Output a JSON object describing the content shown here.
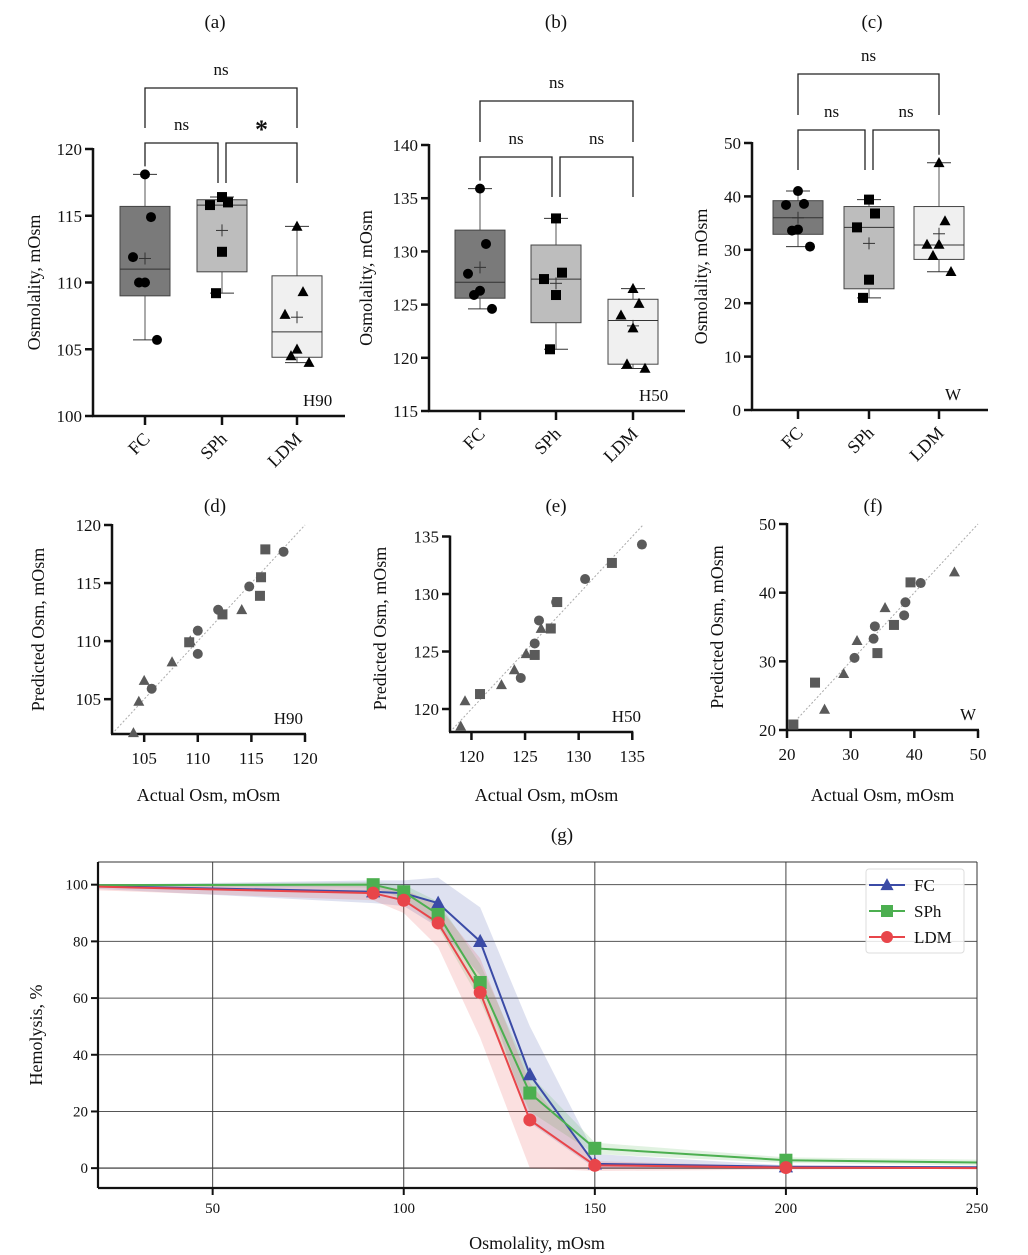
{
  "chart_data": [
    {
      "id": "a",
      "panel_label": "(a)",
      "type": "box",
      "ylabel": "Osmolality, mOsm",
      "ylim": [
        100,
        120
      ],
      "yticks": [
        100,
        105,
        110,
        115,
        120
      ],
      "categories": [
        "FC",
        "SPh",
        "LDM"
      ],
      "annotation": "H90",
      "boxes": [
        {
          "name": "FC",
          "q1": 109.0,
          "median": 111.0,
          "q3": 115.7,
          "min": 105.7,
          "max": 118.1,
          "mean": 111.8,
          "fill": "#7a7a7a",
          "marker": "circle",
          "points": [
            118.1,
            114.9,
            111.9,
            110.0,
            110.0,
            105.7
          ]
        },
        {
          "name": "SPh",
          "q1": 110.8,
          "median": 115.8,
          "q3": 116.2,
          "min": 109.2,
          "max": 116.4,
          "mean": 113.9,
          "fill": "#bdbdbd",
          "marker": "square",
          "points": [
            116.4,
            116.0,
            115.8,
            112.3,
            109.2
          ]
        },
        {
          "name": "LDM",
          "q1": 104.4,
          "median": 106.3,
          "q3": 110.5,
          "min": 104.0,
          "max": 114.2,
          "mean": 107.4,
          "fill": "#f0f0f0",
          "marker": "triangle",
          "points": [
            114.2,
            109.3,
            107.6,
            105.0,
            104.5,
            104.0
          ]
        }
      ],
      "significance": [
        {
          "from": "FC",
          "to": "SPh",
          "label": "ns",
          "level": 1
        },
        {
          "from": "SPh",
          "to": "LDM",
          "label": "*",
          "level": 1
        },
        {
          "from": "FC",
          "to": "LDM",
          "label": "ns",
          "level": 2
        }
      ]
    },
    {
      "id": "b",
      "panel_label": "(b)",
      "type": "box",
      "ylabel": "Osmolality, mOsm",
      "ylim": [
        115,
        140
      ],
      "yticks": [
        115,
        120,
        125,
        130,
        135,
        140
      ],
      "categories": [
        "FC",
        "SPh",
        "LDM"
      ],
      "annotation": "H50",
      "boxes": [
        {
          "name": "FC",
          "q1": 125.6,
          "median": 127.1,
          "q3": 132.0,
          "min": 124.6,
          "max": 135.9,
          "mean": 128.5,
          "fill": "#7a7a7a",
          "marker": "circle",
          "points": [
            135.9,
            130.7,
            127.9,
            126.3,
            125.9,
            124.6
          ]
        },
        {
          "name": "SPh",
          "q1": 123.3,
          "median": 127.4,
          "q3": 130.6,
          "min": 120.8,
          "max": 133.1,
          "mean": 127.0,
          "fill": "#bdbdbd",
          "marker": "square",
          "points": [
            133.1,
            128.0,
            127.4,
            125.9,
            120.8
          ]
        },
        {
          "name": "LDM",
          "q1": 119.4,
          "median": 123.5,
          "q3": 125.5,
          "min": 119.0,
          "max": 126.5,
          "mean": 123.0,
          "fill": "#f0f0f0",
          "marker": "triangle",
          "points": [
            126.5,
            125.1,
            124.0,
            122.8,
            119.4,
            119.0
          ]
        }
      ],
      "significance": [
        {
          "from": "FC",
          "to": "SPh",
          "label": "ns",
          "level": 1
        },
        {
          "from": "SPh",
          "to": "LDM",
          "label": "ns",
          "level": 1
        },
        {
          "from": "FC",
          "to": "LDM",
          "label": "ns",
          "level": 2
        }
      ]
    },
    {
      "id": "c",
      "panel_label": "(c)",
      "type": "box",
      "ylabel": "Osmolality, mOsm",
      "ylim": [
        0,
        50
      ],
      "yticks": [
        0,
        10,
        20,
        30,
        40,
        50
      ],
      "categories": [
        "FC",
        "SPh",
        "LDM"
      ],
      "annotation": "W",
      "boxes": [
        {
          "name": "FC",
          "q1": 32.9,
          "median": 36.0,
          "q3": 39.2,
          "min": 30.6,
          "max": 41.0,
          "mean": 36.0,
          "fill": "#7a7a7a",
          "marker": "circle",
          "points": [
            41.0,
            38.6,
            38.4,
            33.8,
            33.6,
            30.6
          ]
        },
        {
          "name": "SPh",
          "q1": 22.7,
          "median": 34.2,
          "q3": 38.1,
          "min": 21.0,
          "max": 39.4,
          "mean": 31.2,
          "fill": "#bdbdbd",
          "marker": "square",
          "points": [
            39.4,
            36.8,
            34.2,
            24.4,
            21.0
          ]
        },
        {
          "name": "LDM",
          "q1": 28.2,
          "median": 30.9,
          "q3": 38.1,
          "min": 25.9,
          "max": 46.3,
          "mean": 33.0,
          "fill": "#f0f0f0",
          "marker": "triangle",
          "points": [
            46.3,
            35.4,
            31.0,
            31.0,
            28.9,
            25.9
          ]
        }
      ],
      "significance": [
        {
          "from": "FC",
          "to": "SPh",
          "label": "ns",
          "level": 1
        },
        {
          "from": "SPh",
          "to": "LDM",
          "label": "ns",
          "level": 1
        },
        {
          "from": "FC",
          "to": "LDM",
          "label": "ns",
          "level": 2
        }
      ]
    },
    {
      "id": "d",
      "panel_label": "(d)",
      "type": "scatter",
      "xlabel": "Actual Osm, mOsm",
      "ylabel": "Predicted Osm, mOsm",
      "xlim": [
        102,
        120
      ],
      "ylim": [
        102,
        120
      ],
      "xticks": [
        105,
        110,
        115,
        120
      ],
      "yticks": [
        105,
        110,
        115,
        120
      ],
      "annotation": "H90",
      "identity_line": true,
      "points": [
        {
          "x": 118.0,
          "y": 117.7,
          "marker": "circle"
        },
        {
          "x": 116.3,
          "y": 117.9,
          "marker": "square"
        },
        {
          "x": 115.9,
          "y": 115.5,
          "marker": "square"
        },
        {
          "x": 114.8,
          "y": 114.7,
          "marker": "circle"
        },
        {
          "x": 115.8,
          "y": 113.9,
          "marker": "square"
        },
        {
          "x": 114.1,
          "y": 112.7,
          "marker": "triangle"
        },
        {
          "x": 111.9,
          "y": 112.7,
          "marker": "circle"
        },
        {
          "x": 112.3,
          "y": 112.3,
          "marker": "square"
        },
        {
          "x": 110.0,
          "y": 110.9,
          "marker": "circle"
        },
        {
          "x": 109.2,
          "y": 109.9,
          "marker": "square"
        },
        {
          "x": 109.3,
          "y": 110.0,
          "marker": "triangle"
        },
        {
          "x": 110.0,
          "y": 108.9,
          "marker": "circle"
        },
        {
          "x": 107.6,
          "y": 108.2,
          "marker": "triangle"
        },
        {
          "x": 105.7,
          "y": 105.9,
          "marker": "circle"
        },
        {
          "x": 105.0,
          "y": 106.6,
          "marker": "triangle"
        },
        {
          "x": 104.5,
          "y": 104.8,
          "marker": "triangle"
        },
        {
          "x": 104.0,
          "y": 102.1,
          "marker": "triangle"
        }
      ]
    },
    {
      "id": "e",
      "panel_label": "(e)",
      "type": "scatter",
      "xlabel": "Actual Osm, mOsm",
      "ylabel": "Predicted Osm, mOsm",
      "xlim": [
        118,
        136
      ],
      "ylim": [
        118,
        136
      ],
      "xticks": [
        120,
        125,
        130,
        135
      ],
      "yticks": [
        120,
        125,
        130,
        135
      ],
      "annotation": "H50",
      "identity_line": true,
      "points": [
        {
          "x": 135.9,
          "y": 134.3,
          "marker": "circle"
        },
        {
          "x": 133.1,
          "y": 132.7,
          "marker": "square"
        },
        {
          "x": 130.6,
          "y": 131.3,
          "marker": "circle"
        },
        {
          "x": 127.9,
          "y": 129.3,
          "marker": "circle"
        },
        {
          "x": 128.0,
          "y": 129.3,
          "marker": "square"
        },
        {
          "x": 127.4,
          "y": 127.0,
          "marker": "square"
        },
        {
          "x": 126.3,
          "y": 127.7,
          "marker": "circle"
        },
        {
          "x": 126.5,
          "y": 127.0,
          "marker": "triangle"
        },
        {
          "x": 125.9,
          "y": 125.7,
          "marker": "circle"
        },
        {
          "x": 125.9,
          "y": 124.7,
          "marker": "square"
        },
        {
          "x": 125.1,
          "y": 124.8,
          "marker": "triangle"
        },
        {
          "x": 124.0,
          "y": 123.4,
          "marker": "triangle"
        },
        {
          "x": 124.6,
          "y": 122.7,
          "marker": "circle"
        },
        {
          "x": 122.8,
          "y": 122.1,
          "marker": "triangle"
        },
        {
          "x": 120.8,
          "y": 121.3,
          "marker": "square"
        },
        {
          "x": 119.4,
          "y": 120.7,
          "marker": "triangle"
        },
        {
          "x": 119.0,
          "y": 118.5,
          "marker": "triangle"
        }
      ]
    },
    {
      "id": "f",
      "panel_label": "(f)",
      "type": "scatter",
      "xlabel": "Actual Osm, mOsm",
      "ylabel": "Predicted Osm, mOsm",
      "xlim": [
        20,
        50
      ],
      "ylim": [
        20,
        50
      ],
      "xticks": [
        20,
        30,
        40,
        50
      ],
      "yticks": [
        20,
        30,
        40,
        50
      ],
      "annotation": "W",
      "identity_line": true,
      "points": [
        {
          "x": 46.3,
          "y": 43.0,
          "marker": "triangle"
        },
        {
          "x": 39.4,
          "y": 41.5,
          "marker": "square"
        },
        {
          "x": 41.0,
          "y": 41.4,
          "marker": "circle"
        },
        {
          "x": 38.6,
          "y": 38.6,
          "marker": "circle"
        },
        {
          "x": 35.4,
          "y": 37.8,
          "marker": "triangle"
        },
        {
          "x": 38.4,
          "y": 36.7,
          "marker": "circle"
        },
        {
          "x": 36.8,
          "y": 35.3,
          "marker": "square"
        },
        {
          "x": 33.8,
          "y": 35.1,
          "marker": "circle"
        },
        {
          "x": 33.6,
          "y": 33.3,
          "marker": "circle"
        },
        {
          "x": 31.0,
          "y": 33.0,
          "marker": "triangle"
        },
        {
          "x": 34.2,
          "y": 31.2,
          "marker": "square"
        },
        {
          "x": 30.6,
          "y": 30.5,
          "marker": "circle"
        },
        {
          "x": 28.9,
          "y": 28.2,
          "marker": "triangle"
        },
        {
          "x": 24.4,
          "y": 26.9,
          "marker": "square"
        },
        {
          "x": 25.9,
          "y": 23.0,
          "marker": "triangle"
        },
        {
          "x": 21.0,
          "y": 20.8,
          "marker": "square"
        }
      ]
    },
    {
      "id": "g",
      "panel_label": "(g)",
      "type": "line",
      "xlabel": "Osmolality, mOsm",
      "ylabel": "Hemolysis, %",
      "xlim": [
        20,
        250
      ],
      "ylim": [
        -7,
        108
      ],
      "xticks": [
        50,
        100,
        150,
        200,
        250
      ],
      "yticks": [
        0,
        20,
        40,
        60,
        80,
        100
      ],
      "grid": true,
      "legend": "top-right",
      "x": [
        20,
        92,
        100,
        109,
        120,
        133,
        150,
        200,
        250
      ],
      "series": [
        {
          "name": "FC",
          "color": "#3b4ba6",
          "marker": "triangle",
          "values": [
            99.5,
            97.5,
            97.0,
            93.5,
            80.0,
            33.0,
            1.5,
            0.5,
            0.3
          ],
          "band_upper": [
            100.0,
            101.5,
            101.5,
            102.5,
            92.0,
            50.0,
            5.0,
            1.0,
            0.6
          ],
          "band_lower": [
            98.5,
            93.5,
            92.5,
            85.0,
            68.0,
            16.0,
            0.0,
            0.0,
            0.0
          ],
          "markers_at": [
            92,
            100,
            109,
            120,
            133,
            150,
            200
          ]
        },
        {
          "name": "SPh",
          "color": "#4caf50",
          "marker": "square",
          "values": [
            99.8,
            100.0,
            97.5,
            89.5,
            65.5,
            26.5,
            7.0,
            2.8,
            2.0
          ],
          "band_upper": [
            100.0,
            101.0,
            100.0,
            94.0,
            72.0,
            33.0,
            9.0,
            3.8,
            3.0
          ],
          "band_lower": [
            99.5,
            99.0,
            95.0,
            85.0,
            59.0,
            20.0,
            5.0,
            1.8,
            1.0
          ],
          "markers_at": [
            92,
            100,
            109,
            120,
            133,
            150,
            200
          ]
        },
        {
          "name": "LDM",
          "color": "#e8454a",
          "marker": "circle",
          "values": [
            99.3,
            97.0,
            94.5,
            86.5,
            62.0,
            17.0,
            1.0,
            0.2,
            0.0
          ],
          "band_upper": [
            100.0,
            99.5,
            98.5,
            92.5,
            74.0,
            30.0,
            2.5,
            0.6,
            0.2
          ],
          "band_lower": [
            98.0,
            94.5,
            90.0,
            78.0,
            46.0,
            0.0,
            -1.0,
            -0.5,
            -0.2
          ],
          "markers_at": [
            92,
            100,
            109,
            120,
            133,
            150,
            200
          ]
        }
      ]
    }
  ]
}
